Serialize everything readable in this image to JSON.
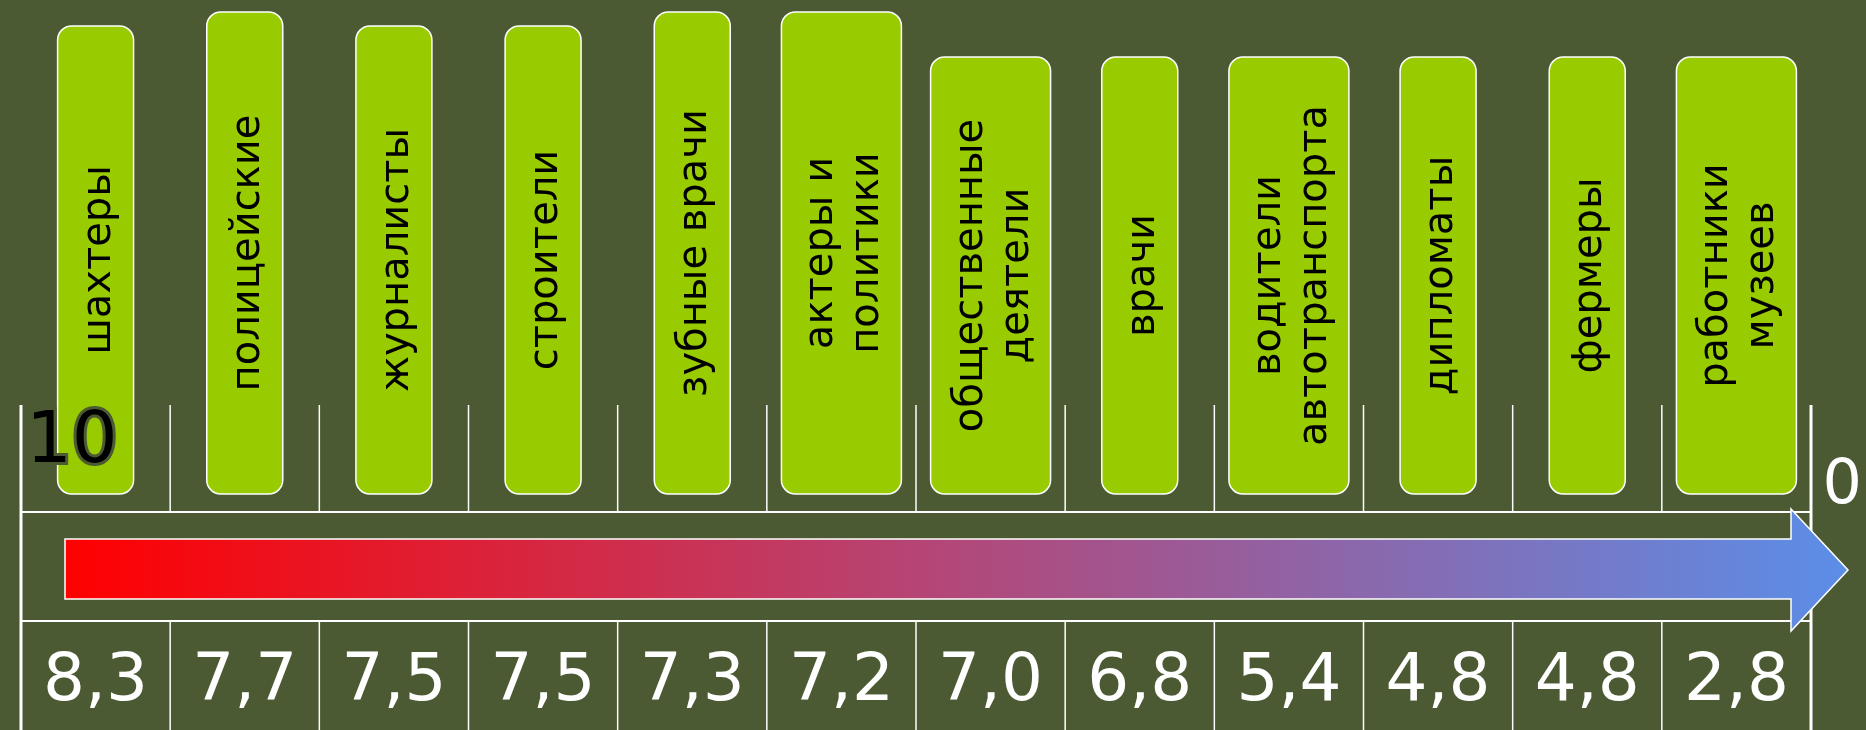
{
  "chart_data": {
    "type": "other",
    "categories": [
      "шахтеры",
      "полицейские",
      "журналисты",
      "строители",
      "зубные врачи",
      "актеры и политики",
      "общественные деятели",
      "врачи",
      "водители автотранспорта",
      "дипломаты",
      "фермеры",
      "работники музеев"
    ],
    "values": [
      8.3,
      7.7,
      7.5,
      7.5,
      7.3,
      7.2,
      7.0,
      6.8,
      5.4,
      4.8,
      4.8,
      2.8
    ],
    "value_labels": [
      "8,3",
      "7,7",
      "7,5",
      "7,5",
      "7,3",
      "7,2",
      "7,0",
      "6,8",
      "5,4",
      "4,8",
      "4,8",
      "2,8"
    ],
    "color": "#99cc00",
    "annotations": [
      "10",
      "0"
    ]
  }
}
